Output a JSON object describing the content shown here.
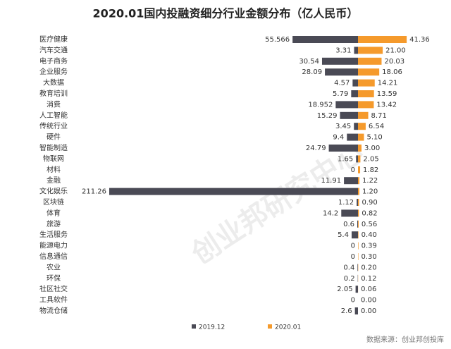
{
  "chart_data": {
    "type": "butterfly-bar",
    "title": "2020.01国内投融资细分行业金额分布（亿人民币）",
    "categories": [
      "医疗健康",
      "汽车交通",
      "电子商务",
      "企业服务",
      "大数据",
      "教育培训",
      "消费",
      "人工智能",
      "传统行业",
      "硬件",
      "智能制造",
      "物联网",
      "材料",
      "金融",
      "文化娱乐",
      "区块链",
      "体育",
      "旅游",
      "生活服务",
      "能源电力",
      "信息通信",
      "农业",
      "环保",
      "社区社交",
      "工具软件",
      "物流仓储"
    ],
    "series": [
      {
        "name": "2019.12",
        "color": "#4a4a55",
        "side": "left",
        "values": [
          55.566,
          3.31,
          30.54,
          28.09,
          4.57,
          5.79,
          18.952,
          15.29,
          3.45,
          9.4,
          24.79,
          1.65,
          0,
          11.91,
          211.26,
          1.12,
          14.2,
          0.6,
          5.4,
          0,
          0,
          0.4,
          0.2,
          2.05,
          0,
          2.6
        ]
      },
      {
        "name": "2020.01",
        "color": "#f59a2c",
        "side": "right",
        "values": [
          41.36,
          21,
          20.03,
          18.06,
          14.21,
          13.59,
          13.42,
          8.71,
          6.54,
          5.1,
          3,
          2.05,
          1.82,
          1.22,
          1.2,
          0.9,
          0.82,
          0.56,
          0.4,
          0.39,
          0.3,
          0.2,
          0.12,
          0.06,
          0,
          0
        ],
        "value_labels": [
          "41.36",
          "21.00",
          "20.03",
          "18.06",
          "14.21",
          "13.59",
          "13.42",
          "8.71",
          "6.54",
          "5.10",
          "3.00",
          "2.05",
          "1.82",
          "1.22",
          "1.20",
          "0.90",
          "0.82",
          "0.56",
          "0.40",
          "0.39",
          "0.30",
          "0.20",
          "0.12",
          "0.06",
          "0.00",
          "0.00"
        ]
      }
    ],
    "source": "数据来源：创业邦创投库",
    "watermark": "创业邦研究中心"
  }
}
